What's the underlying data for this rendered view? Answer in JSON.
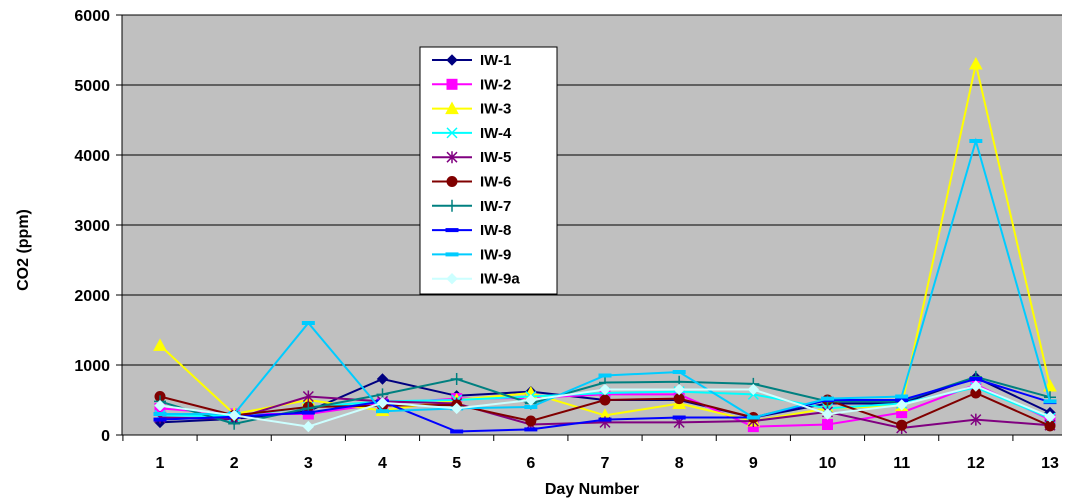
{
  "chart_data": {
    "type": "line",
    "xlabel": "Day Number",
    "ylabel": "CO2 (ppm)",
    "x": [
      1,
      2,
      3,
      4,
      5,
      6,
      7,
      8,
      9,
      10,
      11,
      12,
      13
    ],
    "xticks": [
      "1",
      "2",
      "3",
      "4",
      "5",
      "6",
      "7",
      "8",
      "9",
      "10",
      "11",
      "12",
      "13"
    ],
    "ylim": [
      0,
      6000
    ],
    "yticks": [
      0,
      1000,
      2000,
      3000,
      4000,
      5000,
      6000
    ],
    "ytick_labels": [
      "0",
      "1000",
      "2000",
      "3000",
      "4000",
      "5000",
      "6000"
    ],
    "grid": "horizontal",
    "plot_background": "#c0c0c0",
    "legend_position": "upper-left inside plot",
    "series": [
      {
        "name": "IW-1",
        "color": "#000080",
        "marker": "diamond",
        "values": [
          180,
          230,
          340,
          800,
          560,
          620,
          500,
          500,
          250,
          450,
          450,
          820,
          320
        ]
      },
      {
        "name": "IW-2",
        "color": "#ff00ff",
        "marker": "square",
        "values": [
          380,
          300,
          300,
          450,
          520,
          530,
          580,
          580,
          120,
          150,
          320,
          720,
          220
        ]
      },
      {
        "name": "IW-3",
        "color": "#ffff00",
        "marker": "triangle",
        "values": [
          1280,
          300,
          500,
          350,
          500,
          600,
          280,
          450,
          200,
          380,
          420,
          5300,
          700
        ]
      },
      {
        "name": "IW-4",
        "color": "#00ffff",
        "marker": "x",
        "values": [
          280,
          270,
          400,
          480,
          500,
          550,
          600,
          620,
          580,
          380,
          450,
          680,
          240
        ]
      },
      {
        "name": "IW-5",
        "color": "#800080",
        "marker": "star",
        "values": [
          250,
          230,
          550,
          480,
          450,
          150,
          180,
          180,
          200,
          330,
          100,
          220,
          140
        ]
      },
      {
        "name": "IW-6",
        "color": "#800000",
        "marker": "circle",
        "values": [
          550,
          280,
          400,
          420,
          430,
          200,
          500,
          520,
          250,
          500,
          140,
          600,
          130
        ]
      },
      {
        "name": "IW-7",
        "color": "#008080",
        "marker": "plus",
        "values": [
          480,
          160,
          380,
          580,
          800,
          450,
          750,
          760,
          730,
          480,
          480,
          830,
          540
        ]
      },
      {
        "name": "IW-8",
        "color": "#0000ff",
        "marker": "dash",
        "values": [
          220,
          260,
          320,
          480,
          50,
          80,
          220,
          250,
          250,
          500,
          500,
          800,
          470
        ]
      },
      {
        "name": "IW-9",
        "color": "#00ccff",
        "marker": "dash",
        "values": [
          300,
          300,
          1600,
          340,
          380,
          400,
          850,
          900,
          250,
          520,
          550,
          4200,
          480
        ]
      },
      {
        "name": "IW-9a",
        "color": "#ccffff",
        "marker": "diamond",
        "values": [
          420,
          280,
          120,
          460,
          380,
          500,
          650,
          650,
          650,
          300,
          430,
          700,
          260
        ]
      }
    ]
  }
}
